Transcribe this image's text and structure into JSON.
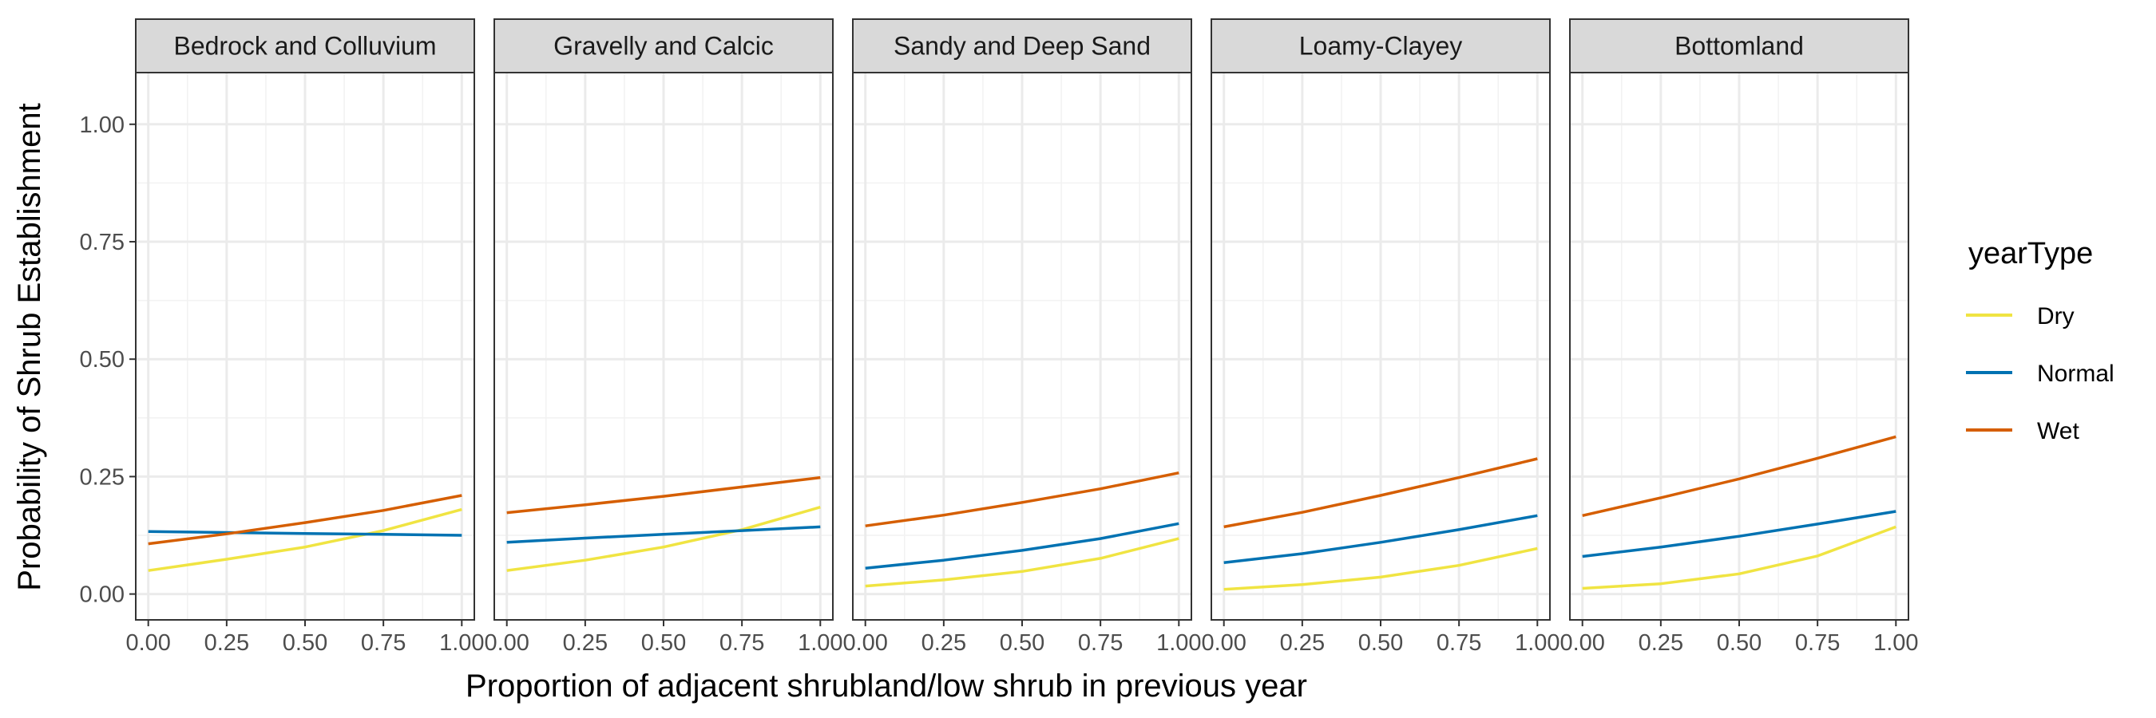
{
  "chart_data": {
    "type": "line",
    "xlabel": "Proportion of adjacent shrubland/low shrub in previous year",
    "ylabel": "Probability of Shrub Establishment",
    "xlim": [
      -0.04,
      1.04
    ],
    "ylim": [
      -0.055,
      1.11
    ],
    "x_ticks": [
      0,
      0.25,
      0.5,
      0.75,
      1
    ],
    "x_tick_labels": [
      "0.00",
      "0.25",
      "0.50",
      "0.75",
      "1.00"
    ],
    "y_ticks": [
      0,
      0.25,
      0.5,
      0.75,
      1
    ],
    "y_tick_labels": [
      "0.00",
      "0.25",
      "0.50",
      "0.75",
      "1.00"
    ],
    "grid": true,
    "legend": {
      "title": "yearType",
      "position": "right",
      "entries": [
        {
          "name": "Dry",
          "color": "#F0E442"
        },
        {
          "name": "Normal",
          "color": "#0072B2"
        },
        {
          "name": "Wet",
          "color": "#D55E00"
        }
      ]
    },
    "x": [
      0,
      0.25,
      0.5,
      0.75,
      1
    ],
    "panels": [
      {
        "title": "Bedrock and Colluvium",
        "series": [
          {
            "name": "Dry",
            "values": [
              0.05,
              0.074,
              0.1,
              0.135,
              0.18
            ]
          },
          {
            "name": "Normal",
            "values": [
              0.133,
              0.131,
              0.129,
              0.127,
              0.125
            ]
          },
          {
            "name": "Wet",
            "values": [
              0.107,
              0.128,
              0.152,
              0.178,
              0.21
            ]
          }
        ]
      },
      {
        "title": "Gravelly and Calcic",
        "series": [
          {
            "name": "Dry",
            "values": [
              0.05,
              0.072,
              0.1,
              0.137,
              0.185
            ]
          },
          {
            "name": "Normal",
            "values": [
              0.11,
              0.119,
              0.127,
              0.135,
              0.143
            ]
          },
          {
            "name": "Wet",
            "values": [
              0.173,
              0.19,
              0.208,
              0.228,
              0.248
            ]
          }
        ]
      },
      {
        "title": "Sandy and Deep Sand",
        "series": [
          {
            "name": "Dry",
            "values": [
              0.017,
              0.03,
              0.048,
              0.076,
              0.118
            ]
          },
          {
            "name": "Normal",
            "values": [
              0.055,
              0.072,
              0.093,
              0.118,
              0.15
            ]
          },
          {
            "name": "Wet",
            "values": [
              0.145,
              0.168,
              0.195,
              0.224,
              0.258
            ]
          }
        ]
      },
      {
        "title": "Loamy-Clayey",
        "series": [
          {
            "name": "Dry",
            "values": [
              0.01,
              0.02,
              0.036,
              0.061,
              0.097
            ]
          },
          {
            "name": "Normal",
            "values": [
              0.067,
              0.086,
              0.11,
              0.137,
              0.167
            ]
          },
          {
            "name": "Wet",
            "values": [
              0.143,
              0.174,
              0.21,
              0.248,
              0.288
            ]
          }
        ]
      },
      {
        "title": "Bottomland",
        "series": [
          {
            "name": "Dry",
            "values": [
              0.012,
              0.022,
              0.043,
              0.081,
              0.143
            ]
          },
          {
            "name": "Normal",
            "values": [
              0.08,
              0.1,
              0.123,
              0.149,
              0.176
            ]
          },
          {
            "name": "Wet",
            "values": [
              0.167,
              0.205,
              0.245,
              0.289,
              0.335
            ]
          }
        ]
      }
    ]
  }
}
